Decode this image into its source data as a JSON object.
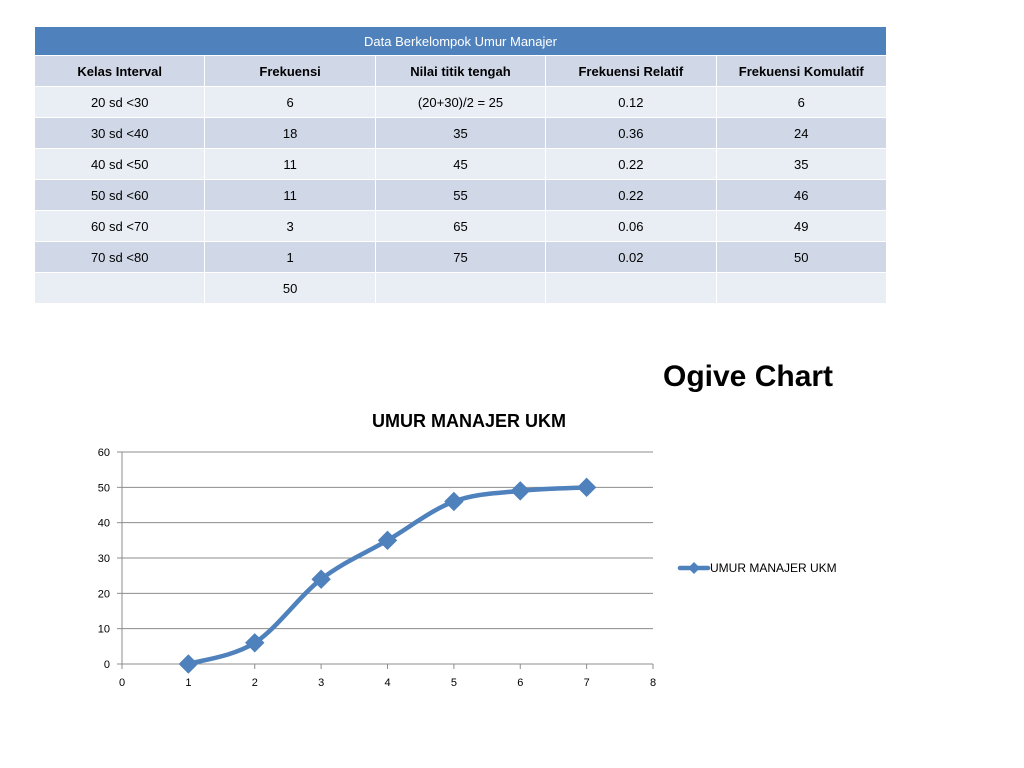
{
  "table": {
    "caption": "Data Berkelompok Umur Manajer",
    "headers": [
      "Kelas Interval",
      "Frekuensi",
      "Nilai titik tengah",
      "Frekuensi Relatif",
      "Frekuensi Komulatif"
    ],
    "rows": [
      [
        "20 sd <30",
        "6",
        "(20+30)/2 = 25",
        "0.12",
        "6"
      ],
      [
        "30 sd <40",
        "18",
        "35",
        "0.36",
        "24"
      ],
      [
        "40 sd <50",
        "11",
        "45",
        "0.22",
        "35"
      ],
      [
        "50 sd <60",
        "11",
        "55",
        "0.22",
        "46"
      ],
      [
        "60 sd <70",
        "3",
        "65",
        "0.06",
        "49"
      ],
      [
        "70 sd <80",
        "1",
        "75",
        "0.02",
        "50"
      ],
      [
        "",
        "50",
        "",
        "",
        ""
      ]
    ]
  },
  "slide_title": "Ogive Chart",
  "chart_data": {
    "type": "line",
    "title": "UMUR MANAJER UKM",
    "xlabel": "",
    "ylabel": "",
    "xlim": [
      0,
      8
    ],
    "ylim": [
      0,
      60
    ],
    "xticks": [
      0,
      1,
      2,
      3,
      4,
      5,
      6,
      7,
      8
    ],
    "yticks": [
      0,
      10,
      20,
      30,
      40,
      50,
      60
    ],
    "grid": "horizontal",
    "smooth": true,
    "marker": "diamond",
    "legend_position": "right",
    "series": [
      {
        "name": "UMUR MANAJER UKM",
        "color": "#4f81bd",
        "x": [
          1,
          2,
          3,
          4,
          5,
          6,
          7
        ],
        "y": [
          0,
          6,
          24,
          35,
          46,
          49,
          50
        ]
      }
    ]
  }
}
